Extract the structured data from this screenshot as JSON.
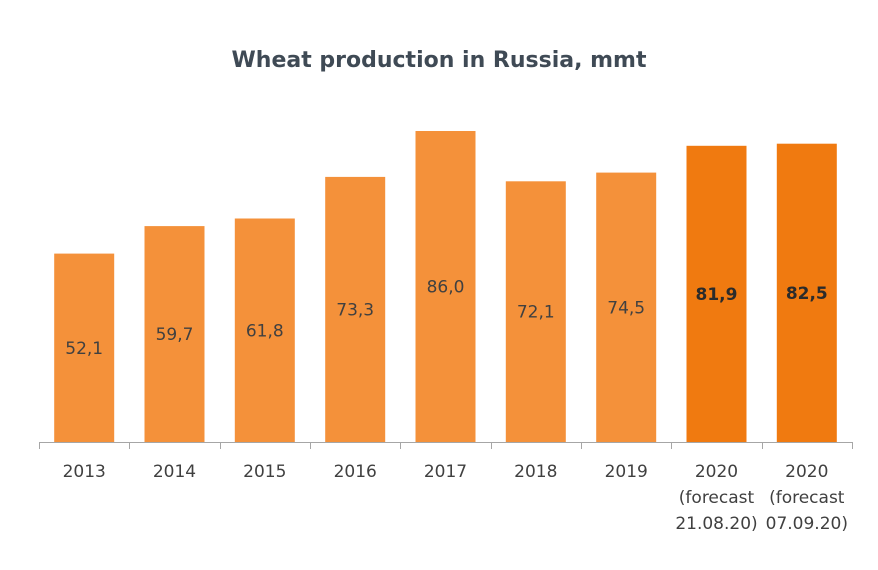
{
  "chart_data": {
    "type": "bar",
    "title": "Wheat production in Russia, mmt",
    "categories": [
      [
        "2013"
      ],
      [
        "2014"
      ],
      [
        "2015"
      ],
      [
        "2016"
      ],
      [
        "2017"
      ],
      [
        "2018"
      ],
      [
        "2019"
      ],
      [
        "2020",
        "(forecast",
        "21.08.20)"
      ],
      [
        "2020",
        "(forecast",
        "07.09.20)"
      ]
    ],
    "values": [
      52.1,
      59.7,
      61.8,
      73.3,
      86.0,
      72.1,
      74.5,
      81.9,
      82.5
    ],
    "value_labels": [
      "52,1",
      "59,7",
      "61,8",
      "73,3",
      "86,0",
      "72,1",
      "74,5",
      "81,9",
      "82,5"
    ],
    "highlight": [
      false,
      false,
      false,
      false,
      false,
      false,
      false,
      true,
      true
    ],
    "colors": {
      "normal": "#f4913a",
      "highlight": "#f07a10",
      "axis": "#a6a6a6"
    },
    "ylim": [
      0,
      86
    ],
    "grid": false,
    "legend": "none"
  }
}
